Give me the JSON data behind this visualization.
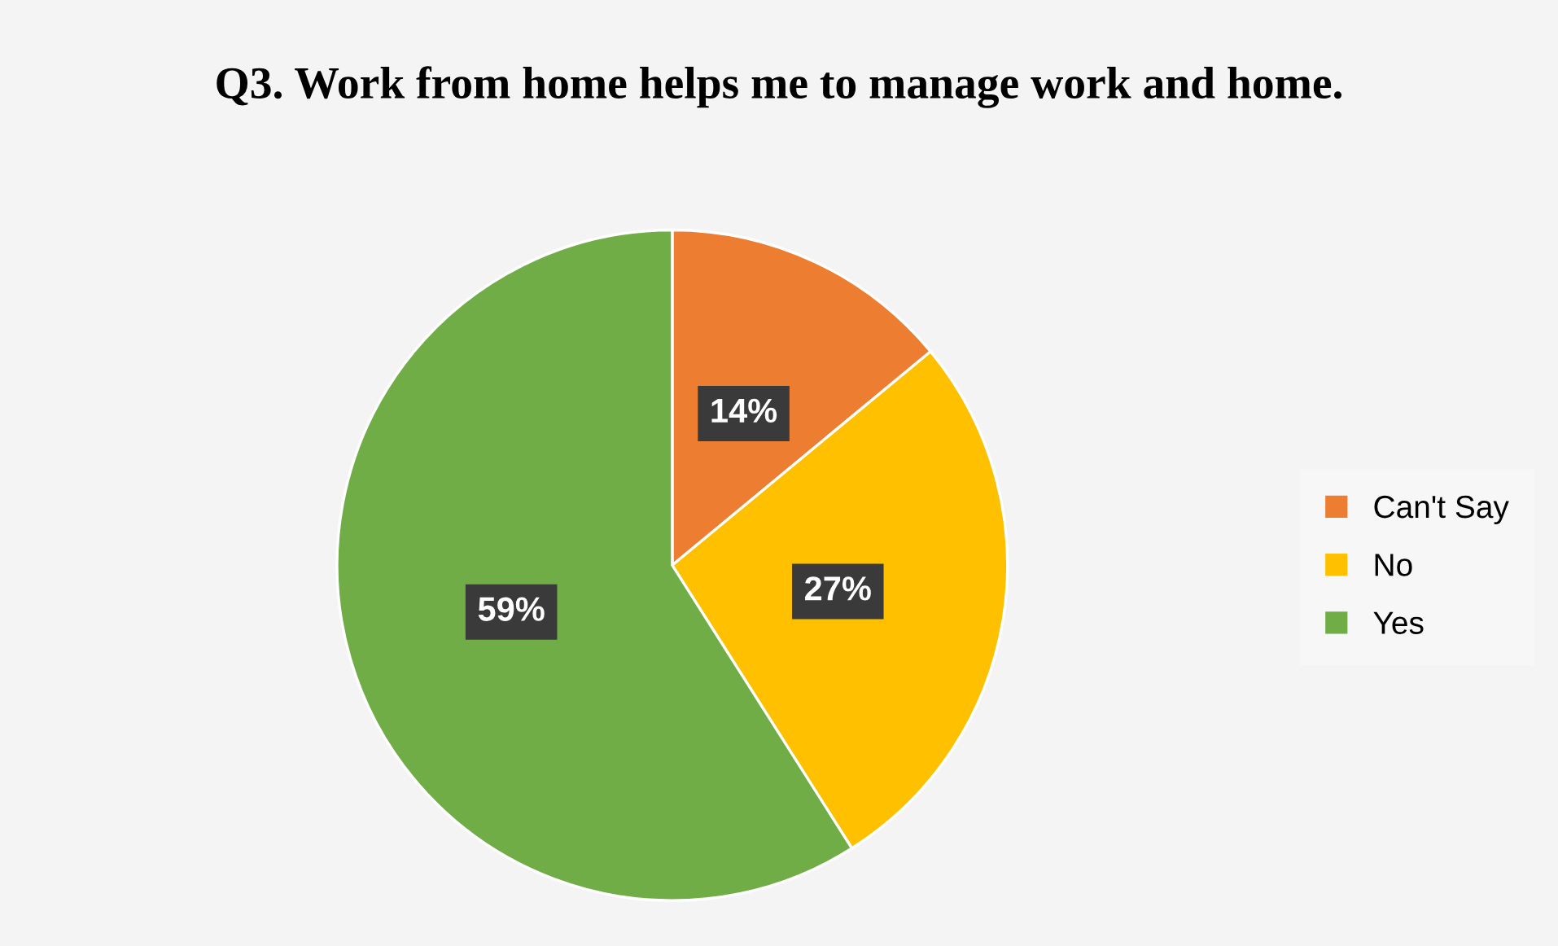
{
  "chart_data": {
    "type": "pie",
    "title": "Q3. Work from home helps me to manage work and home.",
    "categories": [
      "Can't Say",
      "No",
      "Yes"
    ],
    "values": [
      14,
      27,
      59
    ],
    "colors": [
      "#ed7d31",
      "#ffc000",
      "#70ad47"
    ],
    "value_labels": [
      "14%",
      "27%",
      "59%"
    ],
    "legend": "right"
  }
}
